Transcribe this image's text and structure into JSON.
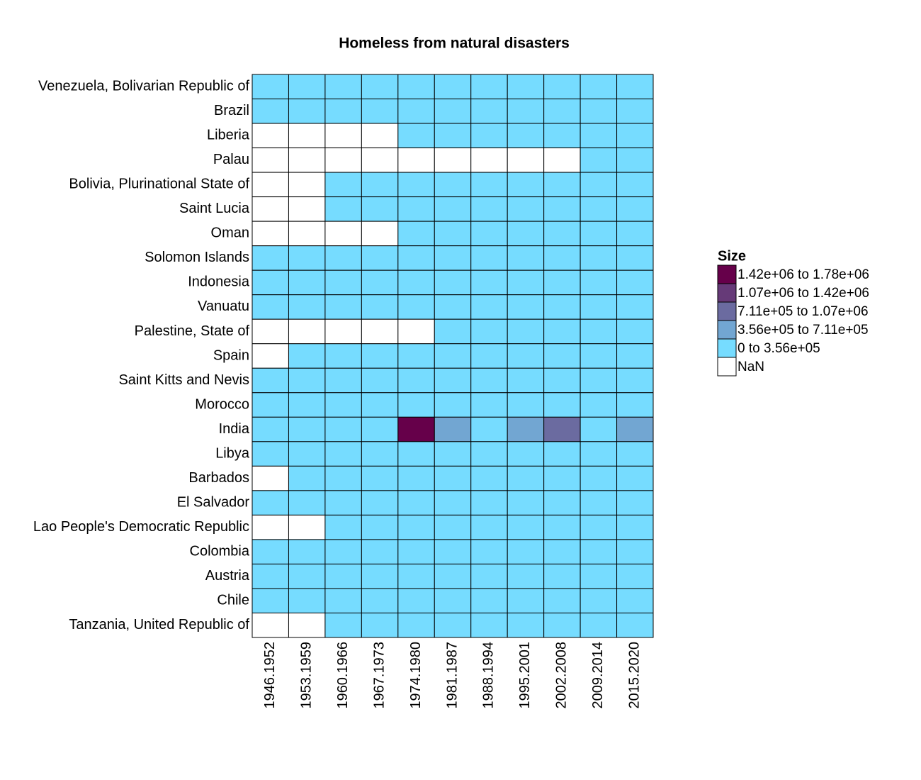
{
  "chart_data": {
    "type": "heatmap",
    "title": "Homeless from natural disasters",
    "categories": [
      "1946.1952",
      "1953.1959",
      "1960.1966",
      "1967.1973",
      "1974.1980",
      "1981.1987",
      "1988.1994",
      "1995.2001",
      "2002.2008",
      "2009.2014",
      "2015.2020"
    ],
    "rows": [
      "Venezuela, Bolivarian Republic of",
      "Brazil",
      "Liberia",
      "Palau",
      "Bolivia, Plurinational State of",
      "Saint Lucia",
      "Oman",
      "Solomon Islands",
      "Indonesia",
      "Vanuatu",
      "Palestine, State of",
      "Spain",
      "Saint Kitts and Nevis",
      "Morocco",
      "India",
      "Libya",
      "Barbados",
      "El Salvador",
      "Lao People's Democratic Republic",
      "Colombia",
      "Austria",
      "Chile",
      "Tanzania, United Republic of"
    ],
    "values": [
      [
        10000,
        10000,
        10000,
        10000,
        10000,
        10000,
        10000,
        10000,
        10000,
        10000,
        10000
      ],
      [
        20000,
        20000,
        20000,
        20000,
        20000,
        20000,
        20000,
        20000,
        20000,
        20000,
        20000
      ],
      [
        null,
        null,
        null,
        null,
        1000,
        1000,
        1000,
        1000,
        1000,
        1000,
        1000
      ],
      [
        null,
        null,
        null,
        null,
        null,
        null,
        null,
        null,
        null,
        1000,
        1000
      ],
      [
        null,
        null,
        10000,
        10000,
        10000,
        10000,
        10000,
        10000,
        10000,
        10000,
        10000
      ],
      [
        null,
        null,
        1000,
        1000,
        1000,
        1000,
        1000,
        1000,
        1000,
        1000,
        1000
      ],
      [
        null,
        null,
        null,
        null,
        1000,
        1000,
        1000,
        1000,
        1000,
        1000,
        1000
      ],
      [
        1000,
        1000,
        1000,
        1000,
        1000,
        1000,
        1000,
        1000,
        1000,
        1000,
        1000
      ],
      [
        50000,
        50000,
        50000,
        50000,
        50000,
        50000,
        50000,
        50000,
        50000,
        50000,
        50000
      ],
      [
        1000,
        1000,
        1000,
        1000,
        1000,
        1000,
        1000,
        1000,
        1000,
        1000,
        1000
      ],
      [
        null,
        null,
        null,
        null,
        null,
        1000,
        1000,
        1000,
        1000,
        1000,
        1000
      ],
      [
        null,
        5000,
        5000,
        5000,
        5000,
        5000,
        5000,
        5000,
        5000,
        5000,
        5000
      ],
      [
        1000,
        1000,
        1000,
        1000,
        1000,
        1000,
        1000,
        1000,
        1000,
        1000,
        1000
      ],
      [
        5000,
        5000,
        5000,
        5000,
        5000,
        5000,
        5000,
        5000,
        5000,
        5000,
        5000
      ],
      [
        200000,
        200000,
        200000,
        200000,
        1600000,
        500000,
        300000,
        500000,
        900000,
        300000,
        500000
      ],
      [
        1000,
        1000,
        1000,
        1000,
        1000,
        1000,
        1000,
        1000,
        1000,
        1000,
        1000
      ],
      [
        null,
        1000,
        1000,
        1000,
        1000,
        1000,
        1000,
        1000,
        1000,
        1000,
        1000
      ],
      [
        5000,
        5000,
        5000,
        5000,
        5000,
        5000,
        5000,
        5000,
        5000,
        5000,
        5000
      ],
      [
        null,
        null,
        5000,
        5000,
        5000,
        5000,
        5000,
        5000,
        5000,
        5000,
        5000
      ],
      [
        10000,
        10000,
        10000,
        10000,
        10000,
        10000,
        10000,
        10000,
        10000,
        10000,
        10000
      ],
      [
        1000,
        1000,
        1000,
        1000,
        1000,
        1000,
        1000,
        1000,
        1000,
        1000,
        1000
      ],
      [
        10000,
        10000,
        10000,
        10000,
        10000,
        10000,
        10000,
        10000,
        10000,
        10000,
        10000
      ],
      [
        null,
        null,
        5000,
        5000,
        5000,
        5000,
        5000,
        5000,
        5000,
        5000,
        5000
      ]
    ],
    "legend": {
      "title": "Size",
      "breaks": [
        0,
        356000,
        711000,
        1070000,
        1420000,
        1780000
      ],
      "items": [
        {
          "label": "1.42e+06 to 1.78e+06",
          "color": "#66004a"
        },
        {
          "label": "1.07e+06 to 1.42e+06",
          "color": "#663a78"
        },
        {
          "label": "7.11e+05 to 1.07e+06",
          "color": "#6b6ba0"
        },
        {
          "label": "3.56e+05 to 7.11e+05",
          "color": "#72a6d2"
        },
        {
          "label": "0 to 3.56e+05",
          "color": "#76dcff"
        }
      ],
      "nan": {
        "label": "NaN",
        "color": "#ffffff"
      }
    }
  }
}
